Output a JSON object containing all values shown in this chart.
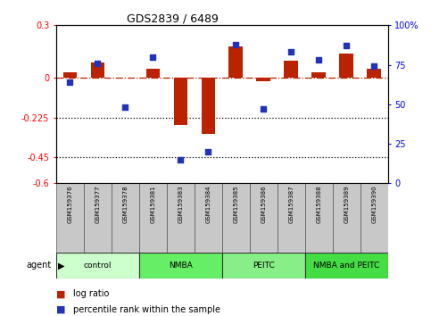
{
  "title": "GDS2839 / 6489",
  "samples": [
    "GSM159376",
    "GSM159377",
    "GSM159378",
    "GSM159381",
    "GSM159383",
    "GSM159384",
    "GSM159385",
    "GSM159386",
    "GSM159387",
    "GSM159388",
    "GSM159389",
    "GSM159390"
  ],
  "log_ratio": [
    0.03,
    0.09,
    0.0,
    0.05,
    -0.27,
    -0.32,
    0.18,
    -0.02,
    0.1,
    0.03,
    0.14,
    0.05
  ],
  "percentile_rank": [
    64,
    76,
    48,
    80,
    15,
    20,
    88,
    47,
    83,
    78,
    87,
    74
  ],
  "ylim_left": [
    -0.6,
    0.3
  ],
  "ylim_right": [
    0,
    100
  ],
  "yticks_left": [
    0.3,
    0.0,
    -0.225,
    -0.45,
    -0.6
  ],
  "ytick_labels_left": [
    "0.3",
    "0",
    "-0.225",
    "-0.45",
    "-0.6"
  ],
  "yticks_right": [
    100,
    75,
    50,
    25,
    0
  ],
  "ytick_labels_right": [
    "100%",
    "75",
    "50",
    "25",
    "0"
  ],
  "hlines": [
    -0.225,
    -0.45
  ],
  "dashed_hline": 0.0,
  "bar_color": "#bb2200",
  "dot_color": "#2233bb",
  "agent_groups": [
    {
      "label": "control",
      "start": 0,
      "end": 3,
      "color": "#ccffcc"
    },
    {
      "label": "NMBA",
      "start": 3,
      "end": 6,
      "color": "#66ee66"
    },
    {
      "label": "PEITC",
      "start": 6,
      "end": 9,
      "color": "#88ee88"
    },
    {
      "label": "NMBA and PEITC",
      "start": 9,
      "end": 12,
      "color": "#44dd44"
    }
  ],
  "agent_label": "agent",
  "legend_log_ratio": "log ratio",
  "legend_percentile": "percentile rank within the sample",
  "bar_width": 0.5,
  "dot_size": 18
}
